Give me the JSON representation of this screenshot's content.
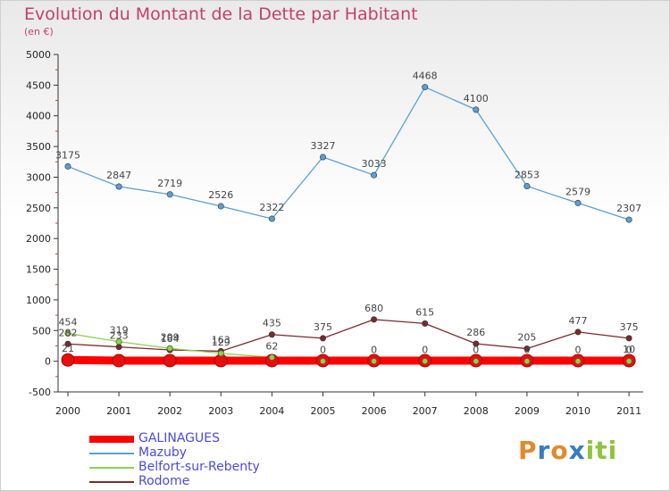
{
  "chart_data": {
    "type": "line",
    "title": "Evolution du Montant de la Dette par Habitant",
    "subtitle": "(en €)",
    "xlabel": "",
    "ylabel": "",
    "x": [
      "2000",
      "2001",
      "2002",
      "2003",
      "2004",
      "2005",
      "2006",
      "2007",
      "2008",
      "2009",
      "2010",
      "2011"
    ],
    "ylim": [
      -500,
      5000
    ],
    "yticks": [
      "-500",
      "0",
      "500",
      "1000",
      "1500",
      "2000",
      "2500",
      "3000",
      "3500",
      "4000",
      "4500",
      "5000"
    ],
    "grid": false,
    "legend_position": "bottom-left",
    "series": [
      {
        "name": "GALINAGUES",
        "color": "#ff0000",
        "values": [
          21,
          10,
          10,
          10,
          10,
          10,
          10,
          10,
          10,
          10,
          10,
          10
        ],
        "labels": [
          "21",
          "",
          "",
          "",
          "",
          "",
          "",
          "",
          "",
          "",
          "",
          "10"
        ]
      },
      {
        "name": "Mazuby",
        "color": "#5b9fd4",
        "values": [
          3175,
          2847,
          2719,
          2526,
          2322,
          3327,
          3033,
          4468,
          4100,
          2853,
          2579,
          2307
        ],
        "labels": [
          "3175",
          "2847",
          "2719",
          "2526",
          "2322",
          "3327",
          "3033",
          "4468",
          "4100",
          "2853",
          "2579",
          "2307"
        ]
      },
      {
        "name": "Belfort-sur-Rebenty",
        "color": "#8fd14f",
        "values": [
          454,
          319,
          209,
          129,
          62,
          0,
          0,
          0,
          0,
          0,
          0,
          0
        ],
        "labels": [
          "454",
          "319",
          "209",
          "129",
          "62",
          "0",
          "0",
          "0",
          "0",
          "0",
          "0",
          "0"
        ]
      },
      {
        "name": "Rodome",
        "color": "#7a2a2a",
        "values": [
          282,
          233,
          184,
          163,
          435,
          375,
          680,
          615,
          286,
          205,
          477,
          375
        ],
        "labels": [
          "282",
          "233",
          "184",
          "163",
          "435",
          "375",
          "680",
          "615",
          "286",
          "205",
          "477",
          "375"
        ]
      }
    ]
  },
  "logo": {
    "letters": [
      "P",
      "r",
      "o",
      "x",
      "i",
      "t",
      "i"
    ],
    "colors": [
      "#e08a2c",
      "#3a7bbf",
      "#e08a2c",
      "#3a7bbf",
      "#8fc43f",
      "#8fc43f",
      "#8fc43f"
    ]
  }
}
